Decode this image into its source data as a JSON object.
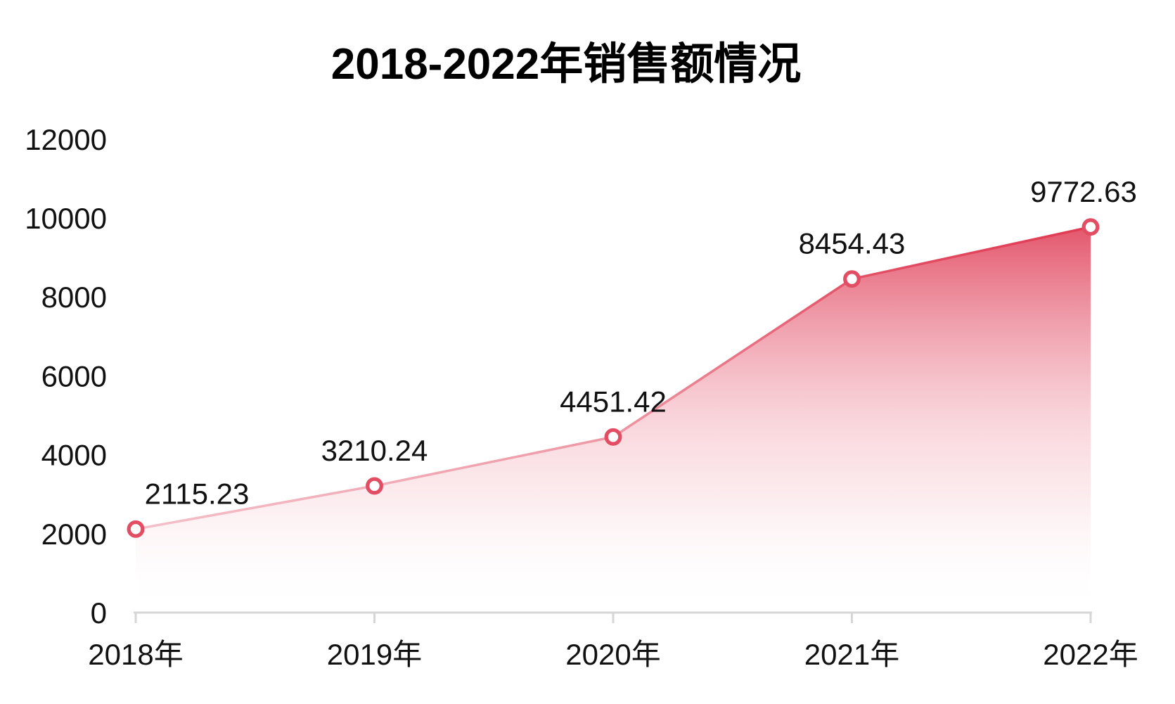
{
  "page": {
    "background": "#ffffff"
  },
  "chart_data": {
    "type": "area",
    "title": "2018-2022年销售额情况",
    "categories": [
      "2018年",
      "2019年",
      "2020年",
      "2021年",
      "2022年"
    ],
    "values": [
      2115.23,
      3210.24,
      4451.42,
      8454.43,
      9772.63
    ],
    "data_labels": [
      "2115.23",
      "3210.24",
      "4451.42",
      "8454.43",
      "9772.63"
    ],
    "xlabel": "",
    "ylabel": "",
    "ylim": [
      0,
      12000
    ],
    "ytick_step": 2000,
    "yticks": [
      0,
      2000,
      4000,
      6000,
      8000,
      10000,
      12000
    ],
    "grid": false,
    "legend": "none",
    "marker_shape": "open-circle",
    "colors": {
      "line_top": "#e03a52",
      "line_bottom": "#f5c2cb",
      "area_top": "#e1485f",
      "area_mid": "#f4b6c0",
      "area_bottom": "#ffffff",
      "marker_stroke": "#e24d63",
      "marker_fill": "#ffffff",
      "axis_line": "#d6d6d6",
      "label_text": "#111111",
      "title_text": "#000000"
    }
  }
}
